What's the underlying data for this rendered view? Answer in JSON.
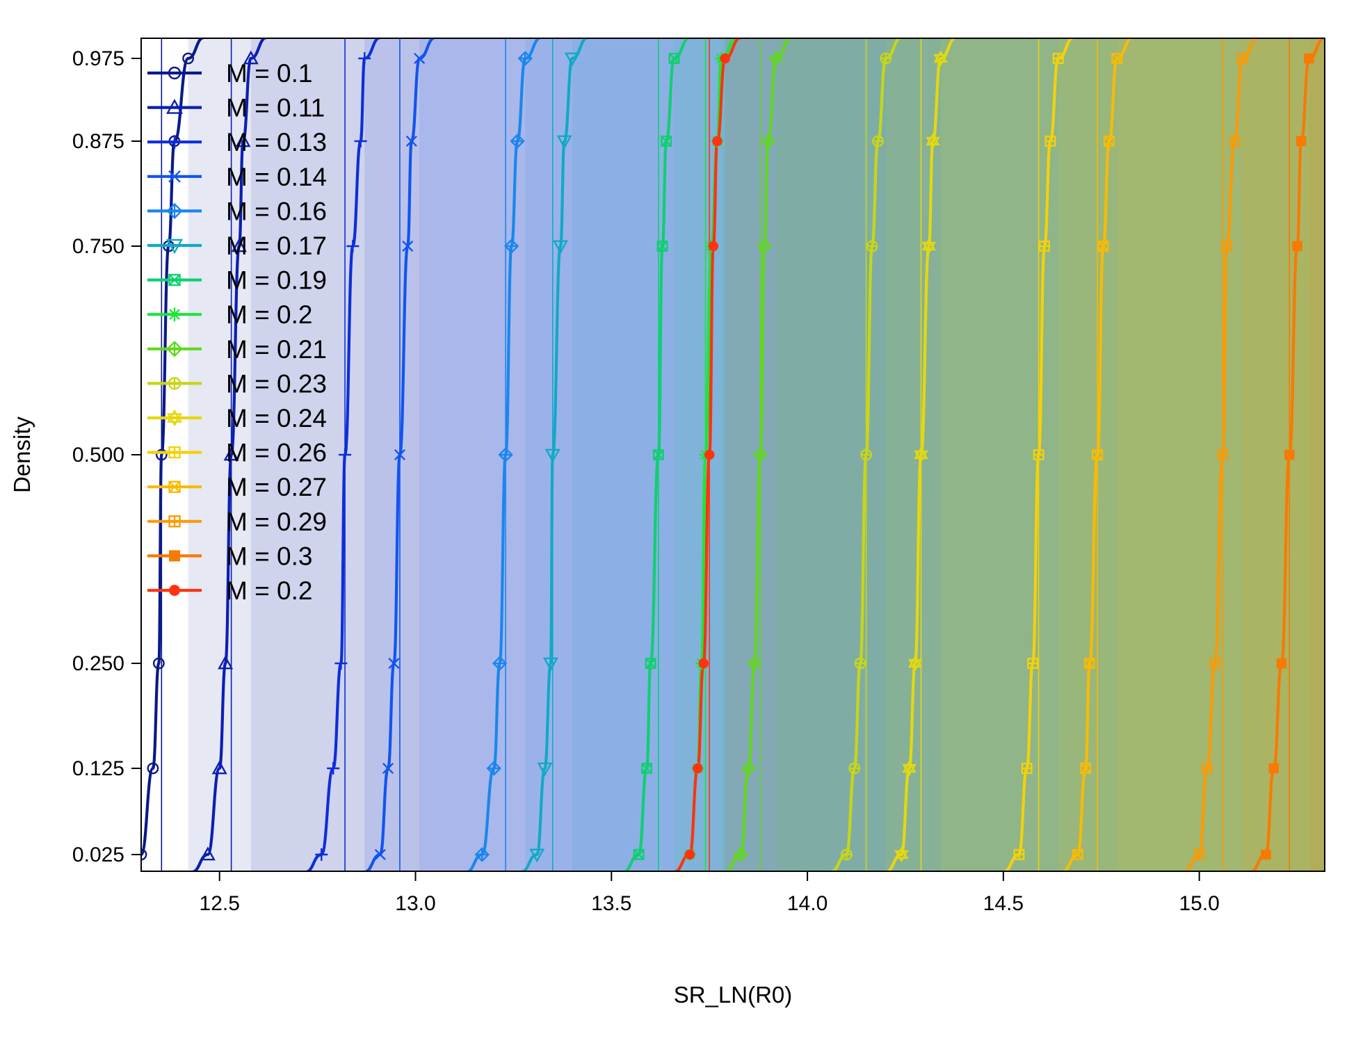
{
  "chart_data": {
    "type": "line",
    "xlabel": "SR_LN(R0)",
    "ylabel": "Density",
    "xlim": [
      12.3,
      15.32
    ],
    "x_ticks": [
      12.5,
      13.0,
      13.5,
      14.0,
      14.5,
      15.0
    ],
    "x_tick_labels": [
      "12.5",
      "13.0",
      "13.5",
      "14.0",
      "14.5",
      "15.0"
    ],
    "y_ticks": [
      0.025,
      0.125,
      0.25,
      0.5,
      0.75,
      0.875,
      0.975
    ],
    "y_tick_labels": [
      "0.025",
      "0.125",
      "0.250",
      "0.500",
      "0.750",
      "0.875",
      "0.975"
    ],
    "y_scale": "probit",
    "grid": false,
    "legend_position": "top-left",
    "series": [
      {
        "name": "M = 0.1",
        "color": "#0a1a8a",
        "marker": "circle",
        "mode": 12.352,
        "quantiles": [
          12.3,
          12.33,
          12.345,
          12.352,
          12.37,
          12.385,
          12.42
        ]
      },
      {
        "name": "M = 0.11",
        "color": "#0b1fb3",
        "marker": "triangle",
        "mode": 12.53,
        "quantiles": [
          12.47,
          12.5,
          12.515,
          12.53,
          12.55,
          12.56,
          12.58
        ]
      },
      {
        "name": "M = 0.13",
        "color": "#0d2ed8",
        "marker": "plus",
        "mode": 12.82,
        "quantiles": [
          12.76,
          12.79,
          12.81,
          12.82,
          12.84,
          12.86,
          12.87
        ]
      },
      {
        "name": "M = 0.14",
        "color": "#1254f0",
        "marker": "cross",
        "mode": 12.96,
        "quantiles": [
          12.91,
          12.93,
          12.945,
          12.96,
          12.98,
          12.99,
          13.01
        ]
      },
      {
        "name": "M = 0.16",
        "color": "#1b86ee",
        "marker": "diamond-plus",
        "mode": 13.23,
        "quantiles": [
          13.17,
          13.2,
          13.215,
          13.23,
          13.245,
          13.26,
          13.28
        ]
      },
      {
        "name": "M = 0.17",
        "color": "#12a9c5",
        "marker": "triangle-down",
        "mode": 13.35,
        "quantiles": [
          13.31,
          13.33,
          13.345,
          13.35,
          13.37,
          13.38,
          13.4
        ]
      },
      {
        "name": "M = 0.19",
        "color": "#10cf72",
        "marker": "square-x",
        "mode": 13.62,
        "quantiles": [
          13.57,
          13.59,
          13.6,
          13.62,
          13.63,
          13.64,
          13.66
        ]
      },
      {
        "name": "M = 0.2",
        "color": "#1ae63a",
        "marker": "asterisk",
        "mode": 13.74,
        "quantiles": [
          13.7,
          13.72,
          13.73,
          13.74,
          13.755,
          13.77,
          13.78
        ]
      },
      {
        "name": "M = 0.21",
        "color": "#62d81c",
        "marker": "diamond-plus",
        "mode": 13.88,
        "quantiles": [
          13.83,
          13.85,
          13.865,
          13.88,
          13.89,
          13.9,
          13.92
        ]
      },
      {
        "name": "M = 0.23",
        "color": "#c8d615",
        "marker": "circle-plus",
        "mode": 14.15,
        "quantiles": [
          14.1,
          14.12,
          14.135,
          14.15,
          14.165,
          14.18,
          14.2
        ]
      },
      {
        "name": "M = 0.24",
        "color": "#e4d80e",
        "marker": "star-david",
        "mode": 14.29,
        "quantiles": [
          14.24,
          14.26,
          14.275,
          14.29,
          14.31,
          14.32,
          14.34
        ]
      },
      {
        "name": "M = 0.26",
        "color": "#f3d10a",
        "marker": "square-plus",
        "mode": 14.59,
        "quantiles": [
          14.54,
          14.56,
          14.575,
          14.59,
          14.605,
          14.62,
          14.64
        ]
      },
      {
        "name": "M = 0.27",
        "color": "#f7bb06",
        "marker": "square-x",
        "mode": 14.74,
        "quantiles": [
          14.69,
          14.71,
          14.72,
          14.74,
          14.755,
          14.77,
          14.79
        ]
      },
      {
        "name": "M = 0.29",
        "color": "#fb9a04",
        "marker": "square-plus",
        "mode": 15.06,
        "quantiles": [
          15.0,
          15.02,
          15.04,
          15.06,
          15.07,
          15.09,
          15.11
        ]
      },
      {
        "name": "M = 0.3",
        "color": "#f77a04",
        "marker": "square",
        "mode": 15.23,
        "quantiles": [
          15.17,
          15.19,
          15.21,
          15.23,
          15.25,
          15.26,
          15.28
        ]
      },
      {
        "name": "M = 0.2",
        "color": "#ff3311",
        "marker": "dot",
        "mode": 13.75,
        "quantiles": [
          13.7,
          13.72,
          13.735,
          13.75,
          13.76,
          13.77,
          13.79
        ]
      }
    ]
  }
}
